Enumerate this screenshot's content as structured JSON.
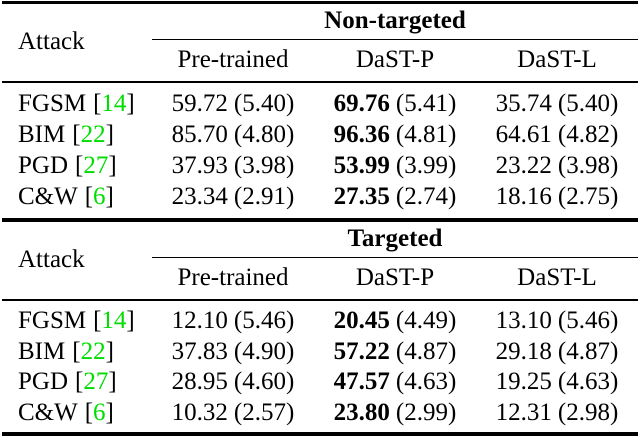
{
  "colors": {
    "citation_green": "#00dd00",
    "text": "#000000",
    "background": "#ffffff"
  },
  "misc": {
    "bracket_open": "[",
    "bracket_close": "]"
  },
  "tables": [
    {
      "section_label": "Non-targeted",
      "attack_header": "Attack",
      "columns": [
        "Pre-trained",
        "DaST-P",
        "DaST-L"
      ],
      "rows": [
        {
          "attack": "FGSM",
          "ref": "14",
          "pretrained": {
            "value": "59.72",
            "paren": "(5.40)",
            "bold": false
          },
          "dast_p": {
            "value": "69.76",
            "paren": "(5.41)",
            "bold": true
          },
          "dast_l": {
            "value": "35.74",
            "paren": "(5.40)",
            "bold": false
          }
        },
        {
          "attack": "BIM",
          "ref": "22",
          "pretrained": {
            "value": "85.70",
            "paren": "(4.80)",
            "bold": false
          },
          "dast_p": {
            "value": "96.36",
            "paren": "(4.81)",
            "bold": true
          },
          "dast_l": {
            "value": "64.61",
            "paren": "(4.82)",
            "bold": false
          }
        },
        {
          "attack": "PGD",
          "ref": "27",
          "pretrained": {
            "value": "37.93",
            "paren": "(3.98)",
            "bold": false
          },
          "dast_p": {
            "value": "53.99",
            "paren": "(3.99)",
            "bold": true
          },
          "dast_l": {
            "value": "23.22",
            "paren": "(3.98)",
            "bold": false
          }
        },
        {
          "attack": "C&W",
          "ref": "6",
          "pretrained": {
            "value": "23.34",
            "paren": "(2.91)",
            "bold": false
          },
          "dast_p": {
            "value": "27.35",
            "paren": "(2.74)",
            "bold": true
          },
          "dast_l": {
            "value": "18.16",
            "paren": "(2.75)",
            "bold": false
          }
        }
      ]
    },
    {
      "section_label": "Targeted",
      "attack_header": "Attack",
      "columns": [
        "Pre-trained",
        "DaST-P",
        "DaST-L"
      ],
      "rows": [
        {
          "attack": "FGSM",
          "ref": "14",
          "pretrained": {
            "value": "12.10",
            "paren": "(5.46)",
            "bold": false
          },
          "dast_p": {
            "value": "20.45",
            "paren": "(4.49)",
            "bold": true
          },
          "dast_l": {
            "value": "13.10",
            "paren": "(5.46)",
            "bold": false
          }
        },
        {
          "attack": "BIM",
          "ref": "22",
          "pretrained": {
            "value": "37.83",
            "paren": "(4.90)",
            "bold": false
          },
          "dast_p": {
            "value": "57.22",
            "paren": "(4.87)",
            "bold": true
          },
          "dast_l": {
            "value": "29.18",
            "paren": "(4.87)",
            "bold": false
          }
        },
        {
          "attack": "PGD",
          "ref": "27",
          "pretrained": {
            "value": "28.95",
            "paren": "(4.60)",
            "bold": false
          },
          "dast_p": {
            "value": "47.57",
            "paren": "(4.63)",
            "bold": true
          },
          "dast_l": {
            "value": "19.25",
            "paren": "(4.63)",
            "bold": false
          }
        },
        {
          "attack": "C&W",
          "ref": "6",
          "pretrained": {
            "value": "10.32",
            "paren": "(2.57)",
            "bold": false
          },
          "dast_p": {
            "value": "23.80",
            "paren": "(2.99)",
            "bold": true
          },
          "dast_l": {
            "value": "12.31",
            "paren": "(2.98)",
            "bold": false
          }
        }
      ]
    }
  ]
}
